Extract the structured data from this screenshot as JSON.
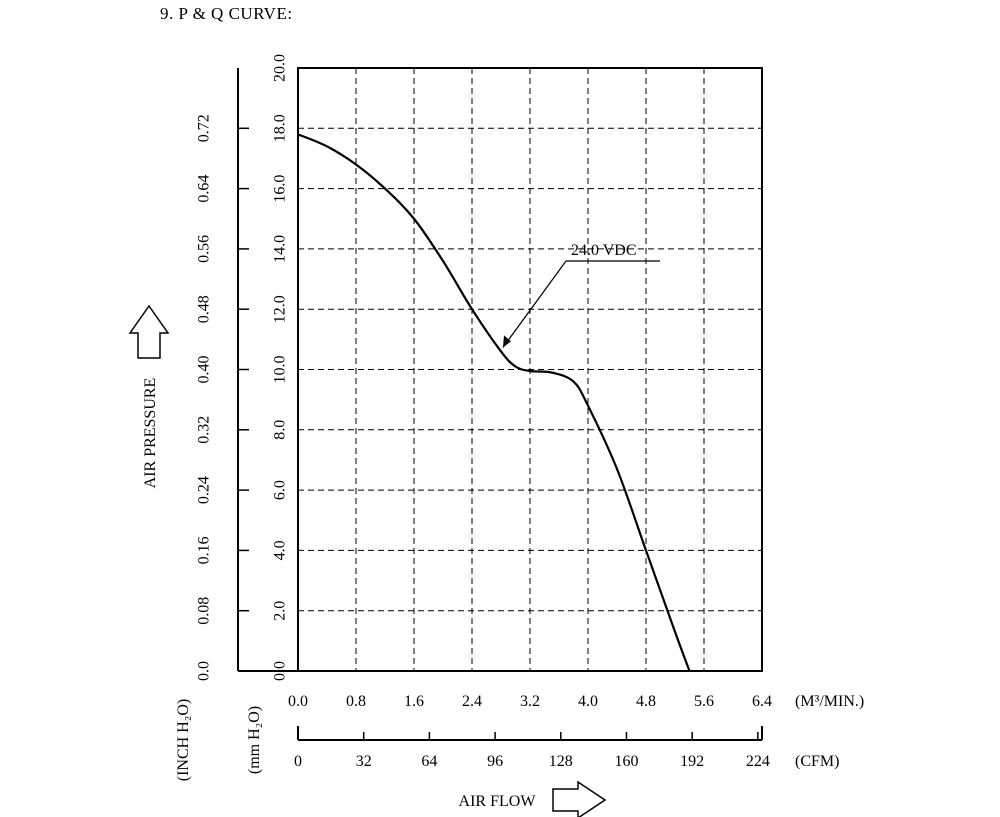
{
  "heading": "9. P & Q CURVE:",
  "chart_data": {
    "type": "line",
    "title": "P & Q CURVE",
    "xlabel": "AIR FLOW",
    "ylabel": "AIR PRESSURE",
    "x_unit_primary": "(M³/MIN.)",
    "x_unit_secondary": "(CFM)",
    "y_unit_primary": "(mm H₂O)",
    "y_unit_secondary": "(INCH H₂O)",
    "xlim": [
      0,
      6.4
    ],
    "ylim": [
      0,
      20
    ],
    "grid": true,
    "x_ticks_m3min": [
      "0.0",
      "0.8",
      "1.6",
      "2.4",
      "3.2",
      "4.0",
      "4.8",
      "5.6",
      "6.4"
    ],
    "x_ticks_cfm": [
      "0",
      "32",
      "64",
      "96",
      "128",
      "160",
      "192",
      "224"
    ],
    "y_ticks_mmh2o": [
      "0.0",
      "2.0",
      "4.0",
      "6.0",
      "8.0",
      "10.0",
      "12.0",
      "14.0",
      "16.0",
      "18.0",
      "20.0"
    ],
    "y_ticks_inchh2o": [
      "0.0",
      "0.08",
      "0.16",
      "0.24",
      "0.32",
      "0.40",
      "0.48",
      "0.56",
      "0.64",
      "0.72"
    ],
    "series": [
      {
        "name": "24.0 VDC",
        "x": [
          0.0,
          0.4,
          0.8,
          1.2,
          1.6,
          2.0,
          2.4,
          2.8,
          3.0,
          3.2,
          3.5,
          3.8,
          4.0,
          4.4,
          4.8,
          5.2,
          5.4
        ],
        "y": [
          17.8,
          17.4,
          16.8,
          16.0,
          15.0,
          13.6,
          12.0,
          10.6,
          10.1,
          9.95,
          9.9,
          9.6,
          8.8,
          6.7,
          4.0,
          1.3,
          0.0
        ]
      }
    ]
  }
}
